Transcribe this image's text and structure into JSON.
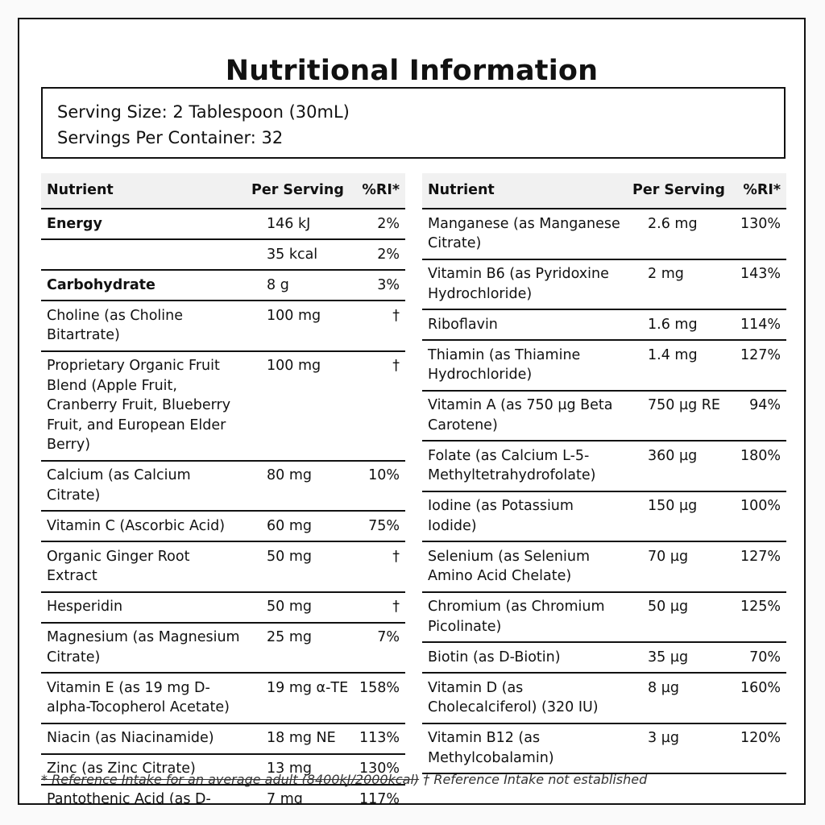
{
  "title": "Nutritional Information",
  "serving": {
    "size": "Serving Size: 2 Tablespoon (30mL)",
    "per_container": "Servings Per Container: 32"
  },
  "headers": {
    "nutrient": "Nutrient",
    "per_serving": "Per Serving",
    "ri": "%RI*"
  },
  "left_rows": [
    {
      "name": "Energy",
      "amount": "146 kJ",
      "ri": "2%",
      "bold": true
    },
    {
      "name": "",
      "amount": "35 kcal",
      "ri": "2%"
    },
    {
      "name": "Carbohydrate",
      "amount": "8 g",
      "ri": "3%",
      "bold": true
    },
    {
      "name": "Choline (as Choline Bitartrate)",
      "amount": "100 mg",
      "ri": "†"
    },
    {
      "name": "Proprietary Organic Fruit Blend (Apple Fruit, Cranberry Fruit, Blueberry Fruit, and European Elder Berry)",
      "amount": "100 mg",
      "ri": "†"
    },
    {
      "name": "Calcium (as Calcium Citrate)",
      "amount": "80 mg",
      "ri": "10%"
    },
    {
      "name": "Vitamin C (Ascorbic Acid)",
      "amount": "60 mg",
      "ri": "75%"
    },
    {
      "name": "Organic Ginger Root Extract",
      "amount": "50 mg",
      "ri": "†"
    },
    {
      "name": "Hesperidin",
      "amount": "50 mg",
      "ri": "†"
    },
    {
      "name": "Magnesium (as Magnesium Citrate)",
      "amount": "25 mg",
      "ri": "7%"
    },
    {
      "name": "Vitamin E (as 19 mg D-alpha-Tocopherol Acetate)",
      "amount": "19 mg α-TE",
      "ri": "158%"
    },
    {
      "name": "Niacin (as Niacinamide)",
      "amount": "18 mg NE",
      "ri": "113%"
    },
    {
      "name": "Zinc (as Zinc Citrate)",
      "amount": "13 mg",
      "ri": "130%"
    },
    {
      "name": "Pantothenic Acid (as D-Calcium Pantothenate)",
      "amount": "7 mg",
      "ri": "117%"
    }
  ],
  "right_rows": [
    {
      "name": "Manganese (as Manganese Citrate)",
      "amount": "2.6 mg",
      "ri": "130%"
    },
    {
      "name": "Vitamin B6 (as Pyridoxine Hydrochloride)",
      "amount": "2 mg",
      "ri": "143%"
    },
    {
      "name": "Riboflavin",
      "amount": "1.6 mg",
      "ri": "114%"
    },
    {
      "name": "Thiamin (as Thiamine Hydrochloride)",
      "amount": "1.4 mg",
      "ri": "127%"
    },
    {
      "name": "Vitamin A (as 750 µg Beta Carotene)",
      "amount": "750 µg RE",
      "ri": "94%"
    },
    {
      "name": "Folate (as Calcium L-5-Methyltetrahydrofolate)",
      "amount": "360 µg",
      "ri": "180%"
    },
    {
      "name": "Iodine (as Potassium Iodide)",
      "amount": "150 µg",
      "ri": "100%"
    },
    {
      "name": "Selenium (as Selenium Amino Acid Chelate)",
      "amount": "70 µg",
      "ri": "127%"
    },
    {
      "name": "Chromium (as Chromium Picolinate)",
      "amount": "50 µg",
      "ri": "125%"
    },
    {
      "name": "Biotin (as D-Biotin)",
      "amount": "35 µg",
      "ri": "70%"
    },
    {
      "name": "Vitamin D (as Cholecalciferol) (320 IU)",
      "amount": "8 µg",
      "ri": "160%"
    },
    {
      "name": "Vitamin B12 (as Methylcobalamin)",
      "amount": "3 µg",
      "ri": "120%"
    }
  ],
  "footnote": {
    "reference_intake": "* Reference Intake for an average adult (8400kJ/2000kcal)",
    "not_established": " † Reference Intake not established"
  }
}
